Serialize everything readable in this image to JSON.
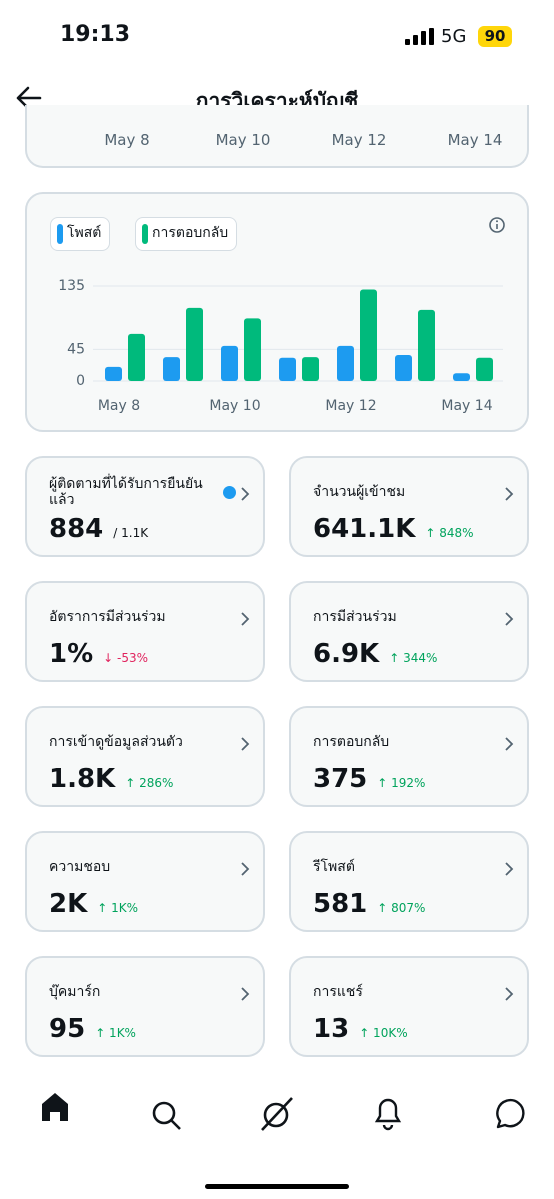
{
  "status_bar": {
    "time": "19:13",
    "network": "5G",
    "battery": "90"
  },
  "header": {
    "title": "การวิเคราะห์บัญชี"
  },
  "previous_chart": {
    "x_labels": [
      "May 8",
      "May 10",
      "May 12",
      "May 14"
    ]
  },
  "chart_data": {
    "type": "bar",
    "categories": [
      "May 8",
      null,
      "May 10",
      null,
      "May 12",
      null,
      "May 14"
    ],
    "series": [
      {
        "name": "โพสต์",
        "color": "#1d9bf0",
        "values": [
          20,
          34,
          50,
          33,
          50,
          37,
          11
        ]
      },
      {
        "name": "การตอบกลับ",
        "color": "#00ba7c",
        "values": [
          67,
          104,
          89,
          34,
          130,
          101,
          33
        ]
      }
    ],
    "ylim": [
      0,
      135
    ],
    "yticks": [
      0,
      45,
      135
    ],
    "grid": true
  },
  "metrics": [
    {
      "title": "ผู้ติดตามที่ได้รับการยืนยันแล้ว",
      "value": "884",
      "detail": "/ 1.1K",
      "color": "#0f1419",
      "verified": true
    },
    {
      "title": "จำนวนผู้เข้าชม",
      "value": "641.1K",
      "detail": "↑ 848%",
      "color": "#00a35c"
    },
    {
      "title": "อัตราการมีส่วนร่วม",
      "value": "1%",
      "detail": "↓ -53%",
      "color": "#e0245e"
    },
    {
      "title": "การมีส่วนร่วม",
      "value": "6.9K",
      "detail": "↑ 344%",
      "color": "#00a35c"
    },
    {
      "title": "การเข้าดูข้อมูลส่วนตัว",
      "value": "1.8K",
      "detail": "↑ 286%",
      "color": "#00a35c"
    },
    {
      "title": "การตอบกลับ",
      "value": "375",
      "detail": "↑ 192%",
      "color": "#00a35c"
    },
    {
      "title": "ความชอบ",
      "value": "2K",
      "detail": "↑ 1K%",
      "color": "#00a35c"
    },
    {
      "title": "รีโพสต์",
      "value": "581",
      "detail": "↑ 807%",
      "color": "#00a35c"
    },
    {
      "title": "บุ๊คมาร์ก",
      "value": "95",
      "detail": "↑ 1K%",
      "color": "#00a35c"
    },
    {
      "title": "การแชร์",
      "value": "13",
      "detail": "↑ 10K%",
      "color": "#00a35c"
    }
  ]
}
